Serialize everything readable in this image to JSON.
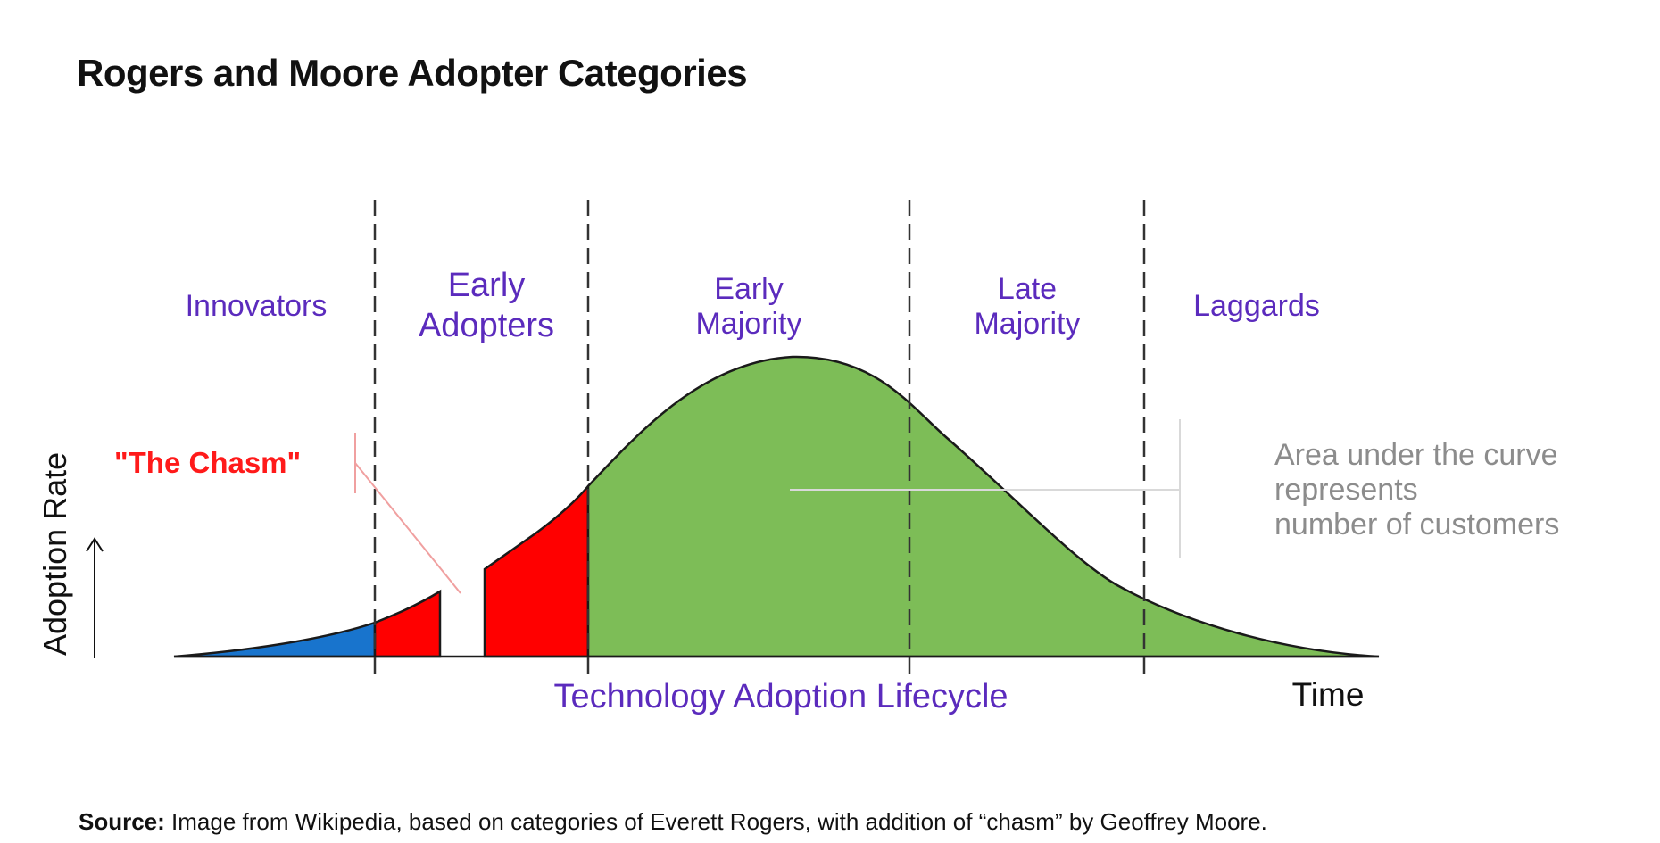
{
  "title": "Rogers and Moore Adopter Categories",
  "categories": [
    {
      "id": "innovators",
      "lines": [
        "Innovators"
      ]
    },
    {
      "id": "early-adopters",
      "lines": [
        "Early",
        "Adopters"
      ]
    },
    {
      "id": "early-majority",
      "lines": [
        "Early",
        "Majority"
      ]
    },
    {
      "id": "late-majority",
      "lines": [
        "Late",
        "Majority"
      ]
    },
    {
      "id": "laggards",
      "lines": [
        "Laggards"
      ]
    }
  ],
  "chasm_label": "\"The Chasm\"",
  "y_axis_label": "Adoption Rate",
  "x_axis_label": "Time",
  "lifecycle_label": "Technology Adoption Lifecycle",
  "area_note": [
    "Area under the curve",
    "represents",
    "number of customers"
  ],
  "source": {
    "label": "Source:",
    "text": " Image from Wikipedia, based on categories of Everett Rogers, with addition of “chasm” by Geoffrey Moore."
  },
  "colors": {
    "category_text": "#5b2bbd",
    "chasm_text": "#ff1a1a",
    "innovators_fill": "#1874cd",
    "early_adopters_fill": "#ff0000",
    "majority_laggards_fill": "#7dbd57",
    "note_text": "#8c8c8c"
  }
}
